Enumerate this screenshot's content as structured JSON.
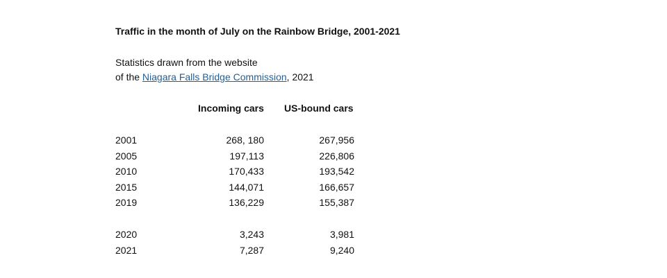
{
  "document": {
    "title": "Traffic in the month of July on the Rainbow Bridge, 2001-2021",
    "source_line1": "Statistics drawn from the website",
    "source_prefix": "of the ",
    "source_link": "Niagara Falls Bridge Commission",
    "source_suffix": ", 2021",
    "link_color": "#1f5f99"
  },
  "table": {
    "headers": [
      "Incoming cars",
      "US-bound cars"
    ],
    "group1": [
      {
        "year": "2001",
        "incoming": "268, 180",
        "us_bound": "267,956"
      },
      {
        "year": "2005",
        "incoming": "197,113",
        "us_bound": "226,806"
      },
      {
        "year": "2010",
        "incoming": "170,433",
        "us_bound": "193,542"
      },
      {
        "year": "2015",
        "incoming": "144,071",
        "us_bound": "166,657"
      },
      {
        "year": "2019",
        "incoming": "136,229",
        "us_bound": "155,387"
      }
    ],
    "group2": [
      {
        "year": "2020",
        "incoming": "3,243",
        "us_bound": "3,981"
      },
      {
        "year": "2021",
        "incoming": "7,287",
        "us_bound": "9,240"
      }
    ]
  }
}
